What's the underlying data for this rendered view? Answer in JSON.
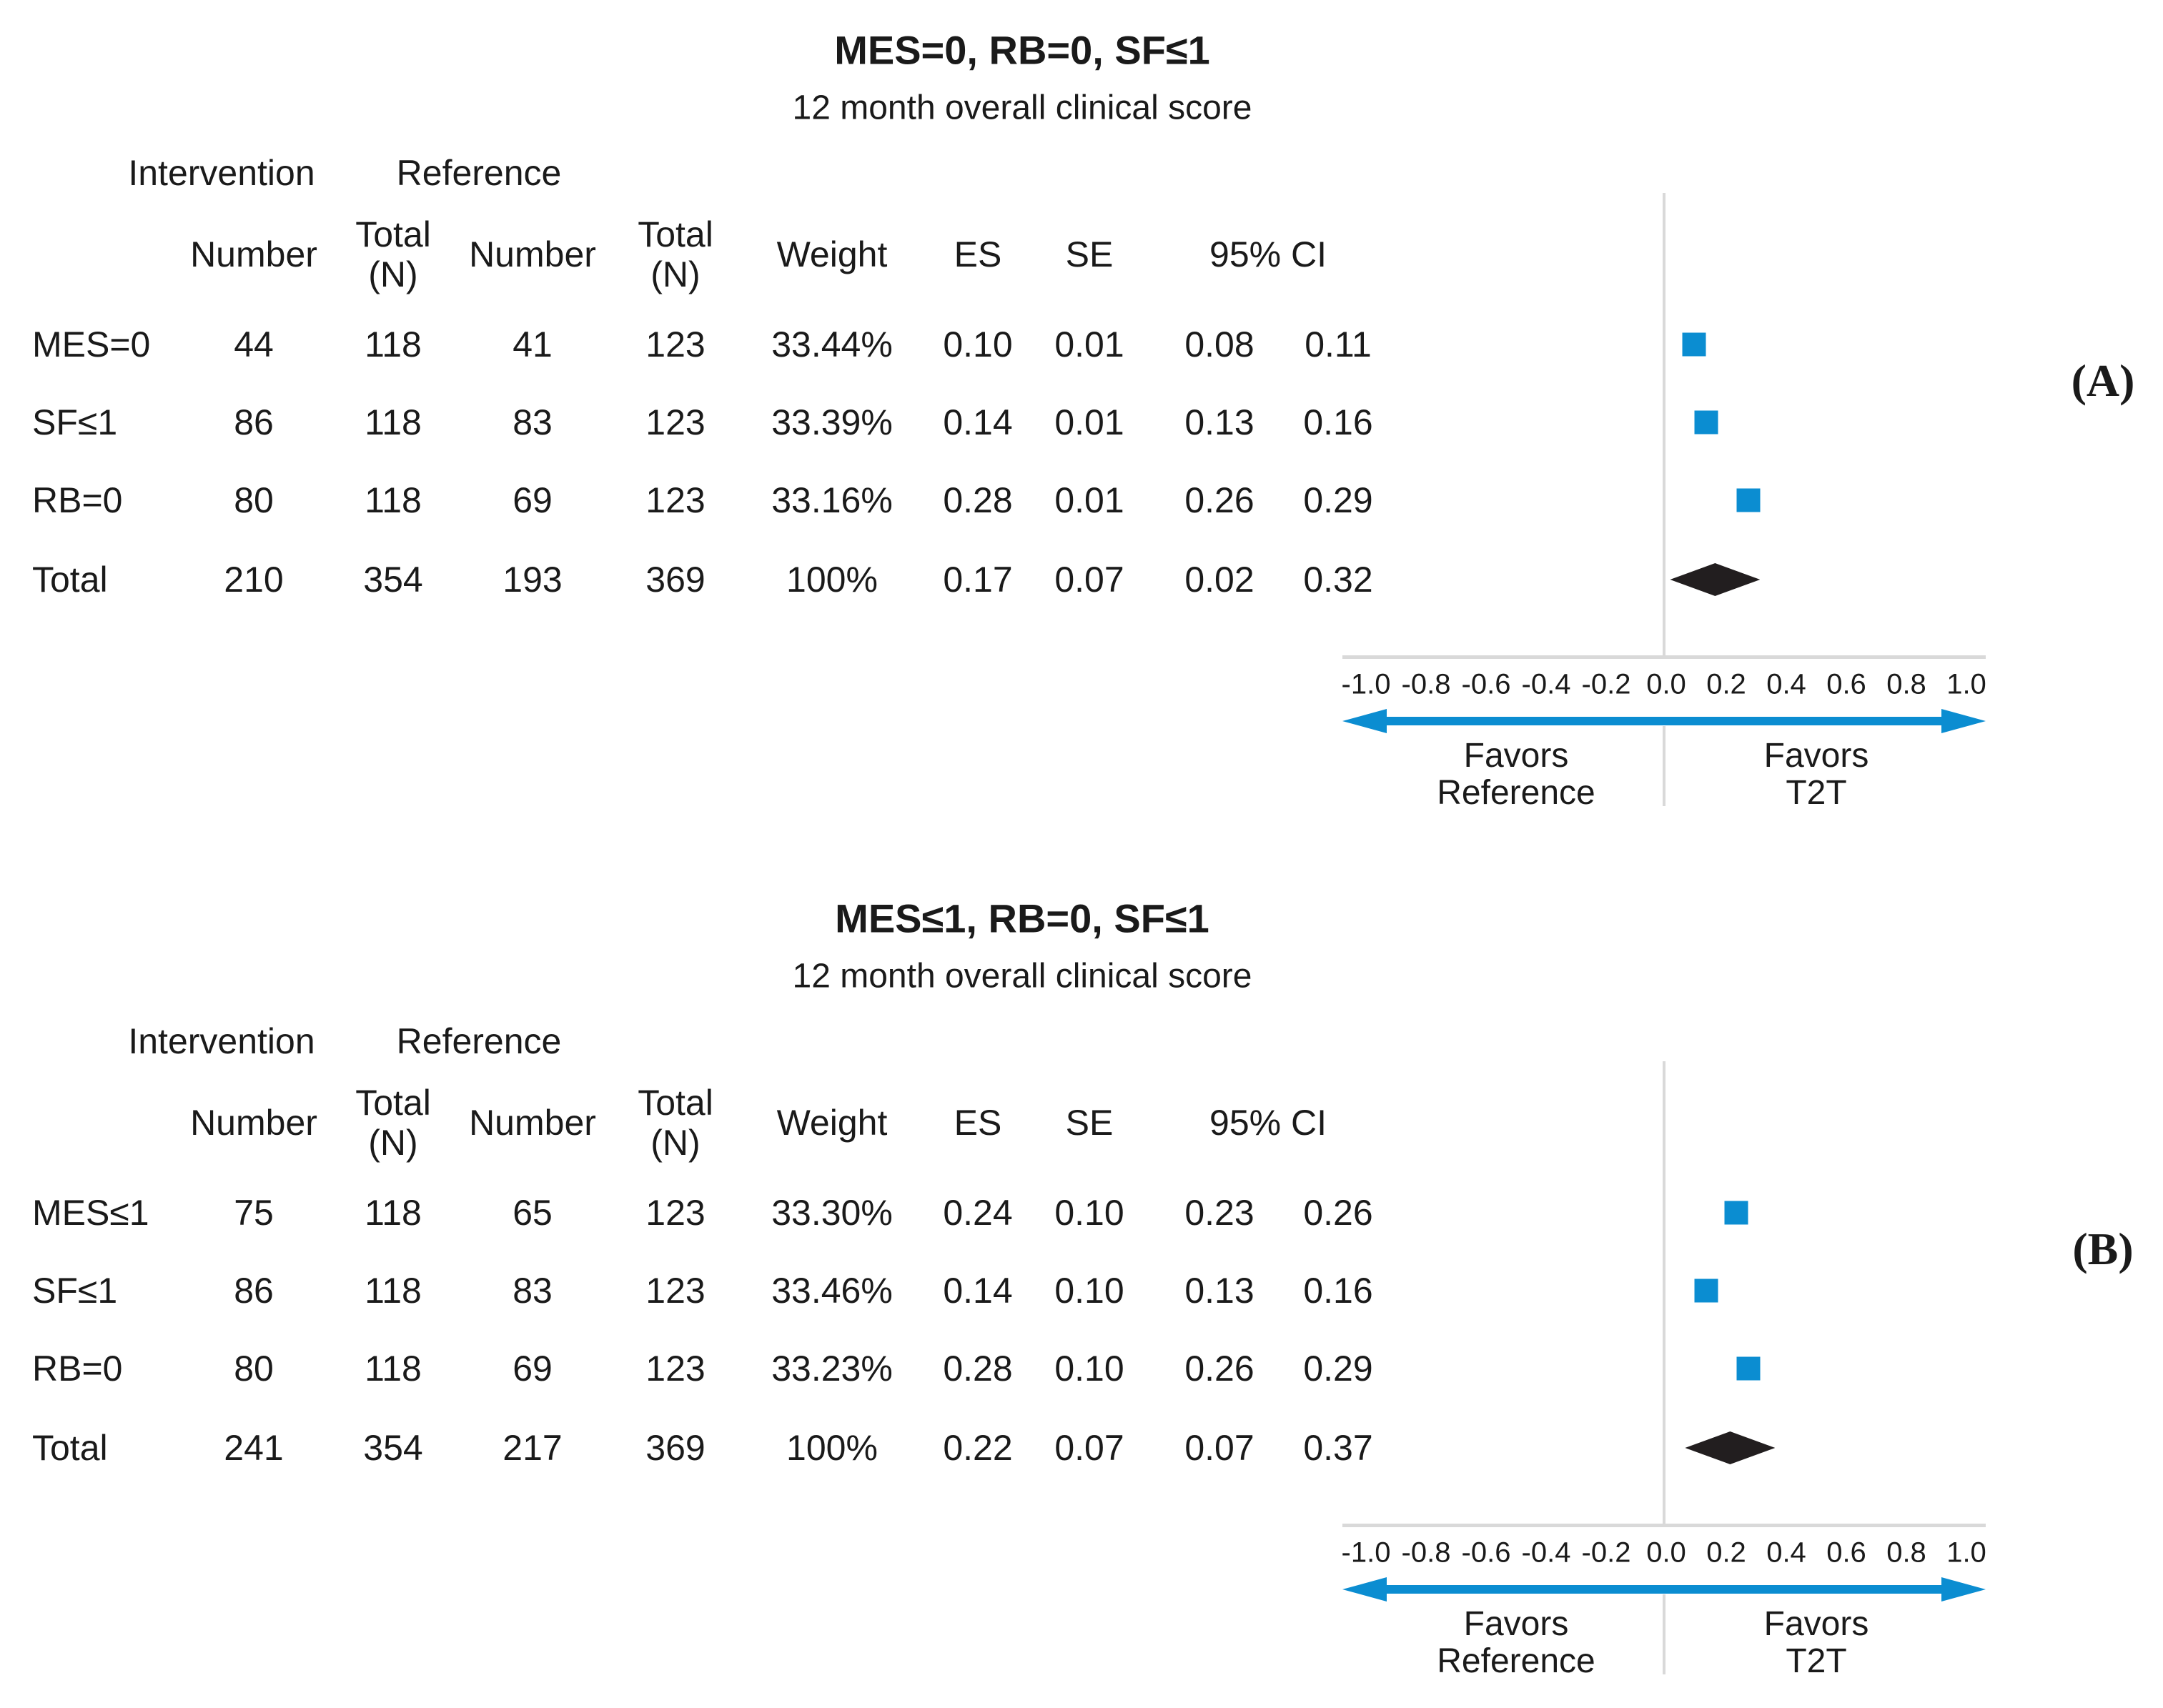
{
  "colors": {
    "marker_blue": "#0b8dd1",
    "diamond_black": "#221e1f",
    "axis_gray": "#d9d9d9",
    "text_black": "#1a1a1a"
  },
  "panels": [
    {
      "panel_label": "(A)",
      "title": "MES=0, RB=0, SF≤1",
      "subtitle": "12 month overall clinical score",
      "group_headers": {
        "intervention": "Intervention",
        "reference": "Reference"
      },
      "column_headers": {
        "number_int": "Number",
        "total_int": "Total\n(N)",
        "number_ref": "Number",
        "total_ref": "Total\n(N)",
        "weight": "Weight",
        "es": "ES",
        "se": "SE",
        "ci": "95% CI"
      },
      "rows": [
        {
          "name": "MES=0",
          "int_number": "44",
          "int_total": "118",
          "ref_number": "41",
          "ref_total": "123",
          "weight": "33.44%",
          "es": "0.10",
          "se": "0.01",
          "ci_low": "0.08",
          "ci_high": "0.11",
          "marker": "square"
        },
        {
          "name": "SF≤1",
          "int_number": "86",
          "int_total": "118",
          "ref_number": "83",
          "ref_total": "123",
          "weight": "33.39%",
          "es": "0.14",
          "se": "0.01",
          "ci_low": "0.13",
          "ci_high": "0.16",
          "marker": "square"
        },
        {
          "name": "RB=0",
          "int_number": "80",
          "int_total": "118",
          "ref_number": "69",
          "ref_total": "123",
          "weight": "33.16%",
          "es": "0.28",
          "se": "0.01",
          "ci_low": "0.26",
          "ci_high": "0.29",
          "marker": "square"
        },
        {
          "name": "Total",
          "int_number": "210",
          "int_total": "354",
          "ref_number": "193",
          "ref_total": "369",
          "weight": "100%",
          "es": "0.17",
          "se": "0.07",
          "ci_low": "0.02",
          "ci_high": "0.32",
          "marker": "diamond"
        }
      ],
      "axis_ticks": [
        "-1.0",
        "-0.8",
        "-0.6",
        "-0.4",
        "-0.2",
        "0.0",
        "0.2",
        "0.4",
        "0.6",
        "0.8",
        "1.0"
      ],
      "favors_left": [
        "Favors",
        "Reference"
      ],
      "favors_right": [
        "Favors",
        "T2T"
      ]
    },
    {
      "panel_label": "(B)",
      "title": "MES≤1, RB=0, SF≤1",
      "subtitle": "12 month overall clinical score",
      "group_headers": {
        "intervention": "Intervention",
        "reference": "Reference"
      },
      "column_headers": {
        "number_int": "Number",
        "total_int": "Total\n(N)",
        "number_ref": "Number",
        "total_ref": "Total\n(N)",
        "weight": "Weight",
        "es": "ES",
        "se": "SE",
        "ci": "95% CI"
      },
      "rows": [
        {
          "name": "MES≤1",
          "int_number": "75",
          "int_total": "118",
          "ref_number": "65",
          "ref_total": "123",
          "weight": "33.30%",
          "es": "0.24",
          "se": "0.10",
          "ci_low": "0.23",
          "ci_high": "0.26",
          "marker": "square"
        },
        {
          "name": "SF≤1",
          "int_number": "86",
          "int_total": "118",
          "ref_number": "83",
          "ref_total": "123",
          "weight": "33.46%",
          "es": "0.14",
          "se": "0.10",
          "ci_low": "0.13",
          "ci_high": "0.16",
          "marker": "square"
        },
        {
          "name": "RB=0",
          "int_number": "80",
          "int_total": "118",
          "ref_number": "69",
          "ref_total": "123",
          "weight": "33.23%",
          "es": "0.28",
          "se": "0.10",
          "ci_low": "0.26",
          "ci_high": "0.29",
          "marker": "square"
        },
        {
          "name": "Total",
          "int_number": "241",
          "int_total": "354",
          "ref_number": "217",
          "ref_total": "369",
          "weight": "100%",
          "es": "0.22",
          "se": "0.07",
          "ci_low": "0.07",
          "ci_high": "0.37",
          "marker": "diamond"
        }
      ],
      "axis_ticks": [
        "-1.0",
        "-0.8",
        "-0.6",
        "-0.4",
        "-0.2",
        "0.0",
        "0.2",
        "0.4",
        "0.6",
        "0.8",
        "1.0"
      ],
      "favors_left": [
        "Favors",
        "Reference"
      ],
      "favors_right": [
        "Favors",
        "T2T"
      ]
    }
  ],
  "chart_data": [
    {
      "type": "scatter",
      "subtype": "forest-plot",
      "title": "MES=0, RB=0, SF≤1",
      "subtitle": "12 month overall clinical score",
      "xlabel": "",
      "xlim": [
        -1.0,
        1.0
      ],
      "x_ticks": [
        -1.0,
        -0.8,
        -0.6,
        -0.4,
        -0.2,
        0.0,
        0.2,
        0.4,
        0.6,
        0.8,
        1.0
      ],
      "grid": false,
      "annotations": {
        "left_of_zero": "Favors Reference",
        "right_of_zero": "Favors T2T"
      },
      "series": [
        {
          "name": "MES=0",
          "intervention_n": 44,
          "intervention_total": 118,
          "reference_n": 41,
          "reference_total": 123,
          "weight_pct": 33.44,
          "es": 0.1,
          "se": 0.01,
          "ci": [
            0.08,
            0.11
          ],
          "marker": "square"
        },
        {
          "name": "SF≤1",
          "intervention_n": 86,
          "intervention_total": 118,
          "reference_n": 83,
          "reference_total": 123,
          "weight_pct": 33.39,
          "es": 0.14,
          "se": 0.01,
          "ci": [
            0.13,
            0.16
          ],
          "marker": "square"
        },
        {
          "name": "RB=0",
          "intervention_n": 80,
          "intervention_total": 118,
          "reference_n": 69,
          "reference_total": 123,
          "weight_pct": 33.16,
          "es": 0.28,
          "se": 0.01,
          "ci": [
            0.26,
            0.29
          ],
          "marker": "square"
        },
        {
          "name": "Total",
          "intervention_n": 210,
          "intervention_total": 354,
          "reference_n": 193,
          "reference_total": 369,
          "weight_pct": 100,
          "es": 0.17,
          "se": 0.07,
          "ci": [
            0.02,
            0.32
          ],
          "marker": "diamond"
        }
      ]
    },
    {
      "type": "scatter",
      "subtype": "forest-plot",
      "title": "MES≤1, RB=0, SF≤1",
      "subtitle": "12 month overall clinical score",
      "xlabel": "",
      "xlim": [
        -1.0,
        1.0
      ],
      "x_ticks": [
        -1.0,
        -0.8,
        -0.6,
        -0.4,
        -0.2,
        0.0,
        0.2,
        0.4,
        0.6,
        0.8,
        1.0
      ],
      "grid": false,
      "annotations": {
        "left_of_zero": "Favors Reference",
        "right_of_zero": "Favors T2T"
      },
      "series": [
        {
          "name": "MES≤1",
          "intervention_n": 75,
          "intervention_total": 118,
          "reference_n": 65,
          "reference_total": 123,
          "weight_pct": 33.3,
          "es": 0.24,
          "se": 0.1,
          "ci": [
            0.23,
            0.26
          ],
          "marker": "square"
        },
        {
          "name": "SF≤1",
          "intervention_n": 86,
          "intervention_total": 118,
          "reference_n": 83,
          "reference_total": 123,
          "weight_pct": 33.46,
          "es": 0.14,
          "se": 0.1,
          "ci": [
            0.13,
            0.16
          ],
          "marker": "square"
        },
        {
          "name": "RB=0",
          "intervention_n": 80,
          "intervention_total": 118,
          "reference_n": 69,
          "reference_total": 123,
          "weight_pct": 33.23,
          "es": 0.28,
          "se": 0.1,
          "ci": [
            0.26,
            0.29
          ],
          "marker": "square"
        },
        {
          "name": "Total",
          "intervention_n": 241,
          "intervention_total": 354,
          "reference_n": 217,
          "reference_total": 369,
          "weight_pct": 100,
          "es": 0.22,
          "se": 0.07,
          "ci": [
            0.07,
            0.37
          ],
          "marker": "diamond"
        }
      ]
    }
  ]
}
